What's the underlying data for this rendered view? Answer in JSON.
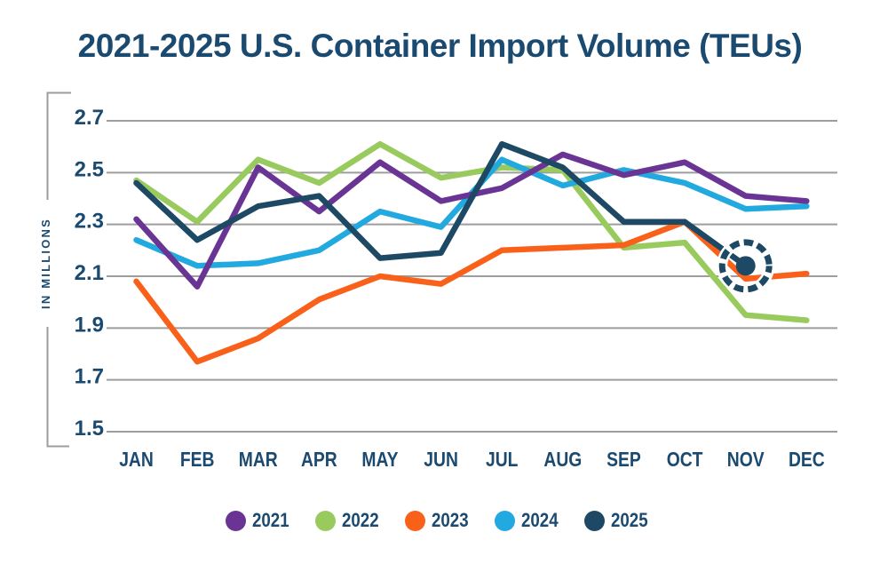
{
  "title": "2021-2025 U.S. Container Import Volume (TEUs)",
  "y_axis": {
    "label": "IN MILLIONS",
    "ticks": [
      "2.7",
      "2.5",
      "2.3",
      "2.1",
      "1.9",
      "1.7",
      "1.5"
    ]
  },
  "chart_data": {
    "type": "line",
    "title": "2021-2025 U.S. Container Import Volume (TEUs)",
    "xlabel": "",
    "ylabel": "IN MILLIONS",
    "ylim": [
      1.5,
      2.7
    ],
    "ytick_interval": 0.2,
    "grid": "horizontal",
    "legend_position": "bottom",
    "categories": [
      "JAN",
      "FEB",
      "MAR",
      "APR",
      "MAY",
      "JUN",
      "JUL",
      "AUG",
      "SEP",
      "OCT",
      "NOV",
      "DEC"
    ],
    "series": [
      {
        "name": "2021",
        "color": "#6A3494",
        "values": [
          2.32,
          2.06,
          2.52,
          2.35,
          2.54,
          2.39,
          2.44,
          2.57,
          2.49,
          2.54,
          2.41,
          2.39
        ]
      },
      {
        "name": "2022",
        "color": "#99CA5E",
        "values": [
          2.47,
          2.31,
          2.55,
          2.46,
          2.61,
          2.48,
          2.52,
          2.51,
          2.21,
          2.23,
          1.95,
          1.93
        ]
      },
      {
        "name": "2023",
        "color": "#F9611A",
        "values": [
          2.08,
          1.77,
          1.86,
          2.01,
          2.1,
          2.07,
          2.2,
          2.21,
          2.22,
          2.31,
          2.09,
          2.11
        ]
      },
      {
        "name": "2024",
        "color": "#22A9E0",
        "values": [
          2.24,
          2.14,
          2.15,
          2.2,
          2.35,
          2.29,
          2.55,
          2.45,
          2.51,
          2.46,
          2.36,
          2.37
        ]
      },
      {
        "name": "2025",
        "color": "#1E4964",
        "values": [
          2.46,
          2.24,
          2.37,
          2.41,
          2.17,
          2.19,
          2.61,
          2.52,
          2.31,
          2.31,
          2.14
        ]
      }
    ],
    "highlight": {
      "series": "2025",
      "month": "NOV",
      "value": 2.14,
      "marker": "filled-dot-with-dashed-circle"
    }
  },
  "colors": {
    "text": "#1B4A70",
    "gridline": "#9D9D9D",
    "background": "#FFFFFF",
    "highlight_ring": "#1E4964",
    "highlight_halo": "#FFFFFF"
  }
}
